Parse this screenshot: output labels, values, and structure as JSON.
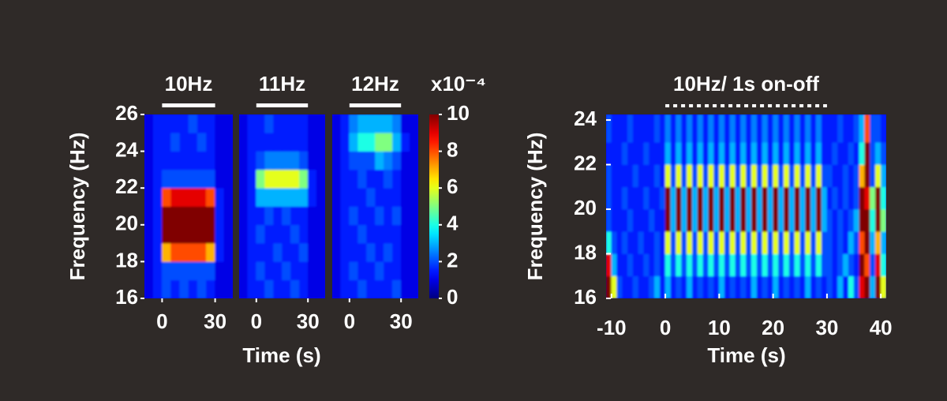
{
  "chart_data": [
    {
      "type": "heatmap",
      "title": "10Hz",
      "ylabel": "Frequency (Hz)",
      "colormap": "jet",
      "clim": [
        0,
        10
      ],
      "xlim": [
        -10,
        40
      ],
      "xticks": [
        0,
        30
      ],
      "ylim": [
        16,
        26
      ],
      "yticks": [
        16,
        18,
        20,
        22,
        24,
        26
      ],
      "stim": [
        0,
        30
      ],
      "stim_style": "solid",
      "x_bins": [
        -10,
        -5,
        0,
        5,
        10,
        15,
        20,
        25,
        30,
        35,
        40
      ],
      "y_bins": [
        16,
        17,
        18,
        19,
        20,
        21,
        22,
        23,
        24,
        25,
        26
      ],
      "z": [
        [
          1,
          1.5,
          2,
          1.5,
          2,
          1.5,
          2,
          1.5,
          1,
          1
        ],
        [
          1,
          1.5,
          2,
          2,
          2,
          2,
          2,
          2,
          1,
          1
        ],
        [
          1,
          1.5,
          7,
          8,
          8,
          8,
          8,
          7,
          1.5,
          1
        ],
        [
          1,
          1.5,
          10,
          10,
          10,
          10,
          10,
          10,
          1.5,
          1
        ],
        [
          1,
          1.5,
          10,
          10,
          10,
          10,
          10,
          10,
          1.5,
          1
        ],
        [
          1,
          1.5,
          8,
          9,
          9,
          9,
          9,
          8,
          1.5,
          1
        ],
        [
          1,
          1.5,
          2,
          2,
          2,
          2,
          2,
          2,
          1,
          1
        ],
        [
          1,
          1.5,
          1.5,
          1.5,
          1.5,
          1.5,
          1.5,
          1.5,
          1,
          1
        ],
        [
          1,
          1.5,
          1.5,
          2,
          1.5,
          1.5,
          2,
          1.5,
          1,
          1
        ],
        [
          1,
          1.5,
          1.5,
          1.5,
          1.5,
          2,
          1.5,
          1.5,
          1,
          1
        ]
      ]
    },
    {
      "type": "heatmap",
      "title": "11Hz",
      "xlabel": "Time (s)",
      "colormap": "jet",
      "clim": [
        0,
        10
      ],
      "xlim": [
        -10,
        40
      ],
      "xticks": [
        0,
        30
      ],
      "ylim": [
        16,
        26
      ],
      "stim": [
        0,
        30
      ],
      "stim_style": "solid",
      "x_bins": [
        -10,
        -5,
        0,
        5,
        10,
        15,
        20,
        25,
        30,
        35,
        40
      ],
      "y_bins": [
        16,
        17,
        18,
        19,
        20,
        21,
        22,
        23,
        24,
        25,
        26
      ],
      "z": [
        [
          1,
          1.5,
          1.5,
          2,
          1.5,
          1.5,
          2,
          1.5,
          1,
          1
        ],
        [
          1,
          1.5,
          2,
          1.5,
          1.5,
          2,
          1.5,
          1.5,
          1,
          1
        ],
        [
          1,
          1.5,
          1.5,
          1.5,
          2,
          1.5,
          1.5,
          2,
          1,
          1
        ],
        [
          1,
          1.5,
          2,
          1.5,
          1.5,
          1.5,
          2,
          1.5,
          1,
          1
        ],
        [
          1,
          1.5,
          1.5,
          2,
          1.5,
          2,
          1.5,
          1.5,
          1,
          1
        ],
        [
          1,
          1.5,
          3,
          3,
          3,
          3,
          3,
          3,
          1.5,
          1
        ],
        [
          1,
          1.5,
          5,
          6,
          6,
          6,
          6,
          5,
          1.5,
          1
        ],
        [
          1,
          1.5,
          2,
          2.5,
          2.5,
          2.5,
          2.5,
          2,
          1,
          1
        ],
        [
          1,
          1.5,
          1.5,
          1.5,
          1.5,
          1.5,
          1.5,
          1.5,
          1,
          1
        ],
        [
          1,
          1.5,
          1.5,
          2,
          1.5,
          1.5,
          1.5,
          1.5,
          1,
          1
        ]
      ]
    },
    {
      "type": "heatmap",
      "title": "12Hz",
      "colormap": "jet",
      "clim": [
        0,
        10
      ],
      "clabel": "x10⁻⁴",
      "cticks": [
        0,
        2,
        4,
        6,
        8,
        10
      ],
      "xlim": [
        -10,
        40
      ],
      "xticks": [
        0,
        30
      ],
      "ylim": [
        16,
        26
      ],
      "stim": [
        0,
        30
      ],
      "stim_style": "solid",
      "x_bins": [
        -10,
        -5,
        0,
        5,
        10,
        15,
        20,
        25,
        30,
        35,
        40
      ],
      "y_bins": [
        16,
        17,
        18,
        19,
        20,
        21,
        22,
        23,
        24,
        25,
        26
      ],
      "z": [
        [
          1,
          1.5,
          1.5,
          2,
          1.5,
          1.5,
          1.5,
          2,
          1,
          1
        ],
        [
          1,
          1.5,
          2,
          1.5,
          1.5,
          2,
          1.5,
          1.5,
          1,
          1
        ],
        [
          1,
          1.5,
          1.5,
          1.5,
          2,
          1.5,
          2,
          1.5,
          1,
          1
        ],
        [
          1,
          1.5,
          1.5,
          2,
          1.5,
          1.5,
          1.5,
          1.5,
          1,
          1
        ],
        [
          1,
          1.5,
          2,
          1.5,
          1.5,
          2,
          1.5,
          2,
          1,
          1
        ],
        [
          1,
          1.5,
          1.5,
          1.5,
          2,
          1.5,
          1.5,
          1.5,
          1,
          1
        ],
        [
          1,
          1.5,
          1.5,
          2,
          1.5,
          1.5,
          2,
          1.5,
          1,
          1
        ],
        [
          1,
          1.5,
          2,
          2,
          2,
          3,
          2.5,
          2,
          1,
          1
        ],
        [
          1,
          1.5,
          3,
          4,
          4,
          5,
          5,
          3,
          1.5,
          1
        ],
        [
          1,
          1.5,
          2.5,
          3,
          3,
          3,
          3,
          2.5,
          1,
          1
        ]
      ]
    },
    {
      "type": "heatmap",
      "title": "10Hz/ 1s on-off",
      "xlabel": "Time (s)",
      "ylabel": "Frequency (Hz)",
      "colormap": "jet",
      "clim": [
        0,
        10
      ],
      "xlim": [
        -11,
        41
      ],
      "xticks": [
        -10,
        0,
        10,
        20,
        30,
        40
      ],
      "ylim": [
        16,
        24.25
      ],
      "yticks": [
        16,
        18,
        20,
        22,
        24
      ],
      "stim": [
        0,
        30
      ],
      "stim_style": "dashed",
      "x_bins": [
        -11,
        -10,
        -9,
        -8,
        -7,
        -6,
        -5,
        -4,
        -3,
        -2,
        -1,
        0,
        1,
        2,
        3,
        4,
        5,
        6,
        7,
        8,
        9,
        10,
        11,
        12,
        13,
        14,
        15,
        16,
        17,
        18,
        19,
        20,
        21,
        22,
        23,
        24,
        25,
        26,
        27,
        28,
        29,
        30,
        31,
        32,
        33,
        34,
        35,
        36,
        37,
        38,
        39,
        40,
        41
      ],
      "y_bins": [
        16,
        17,
        18,
        19,
        20,
        21,
        22,
        23,
        24.25
      ],
      "z": [
        [
          10,
          6,
          2,
          1.5,
          1.5,
          2,
          1.5,
          1.5,
          2,
          3,
          1.5,
          3,
          1.5,
          2,
          1.5,
          3,
          1.5,
          2,
          1.5,
          2,
          1.5,
          3,
          1.5,
          2,
          1.5,
          2,
          1.5,
          3,
          1.5,
          2,
          1.5,
          3,
          1.5,
          2,
          1.5,
          2,
          1.5,
          3,
          1.5,
          2,
          1.5,
          2,
          1.5,
          3,
          1.5,
          4,
          2,
          9,
          10,
          3,
          10,
          6
        ],
        [
          9,
          3,
          1.5,
          1.5,
          2,
          1.5,
          1.5,
          2,
          1.5,
          2,
          1.5,
          4,
          2,
          4,
          2,
          4,
          2,
          4,
          2,
          4,
          2,
          4,
          2,
          4,
          2,
          4,
          2,
          4,
          2,
          4,
          2,
          4,
          2,
          4,
          2,
          4,
          2,
          4,
          2,
          4,
          2,
          2,
          1.5,
          2,
          3,
          2,
          1.5,
          10,
          8,
          2,
          9,
          4
        ],
        [
          4,
          2,
          1.5,
          2,
          1.5,
          1.5,
          2,
          1.5,
          1.5,
          2,
          1.5,
          6,
          2,
          6,
          2,
          6,
          2,
          6,
          2,
          6,
          2,
          6,
          2,
          6,
          2,
          6,
          2,
          6,
          2,
          6,
          2,
          6,
          2,
          6,
          2,
          6,
          2,
          6,
          2,
          6,
          2,
          2,
          1.5,
          2,
          1.5,
          3,
          2,
          8,
          10,
          3,
          7,
          3
        ],
        [
          2,
          1.5,
          1.5,
          1.5,
          2,
          1.5,
          1.5,
          1.5,
          2,
          1.5,
          1.5,
          10,
          3,
          10,
          3,
          10,
          3,
          10,
          3,
          10,
          3,
          10,
          3,
          10,
          3,
          10,
          3,
          10,
          3,
          10,
          3,
          10,
          3,
          10,
          3,
          10,
          3,
          10,
          3,
          10,
          3,
          2,
          1.5,
          2,
          1.5,
          2,
          3,
          10,
          10,
          4,
          10,
          5
        ],
        [
          2,
          1.5,
          1.5,
          2,
          1.5,
          1.5,
          1.5,
          2,
          1.5,
          1.5,
          2,
          10,
          3,
          10,
          3,
          10,
          3,
          10,
          3,
          10,
          3,
          10,
          3,
          10,
          3,
          10,
          3,
          10,
          3,
          10,
          3,
          10,
          3,
          10,
          3,
          10,
          3,
          10,
          3,
          10,
          3,
          1.5,
          2,
          1.5,
          2,
          1.5,
          2,
          10,
          9,
          5,
          10,
          4
        ],
        [
          2,
          1.5,
          1.5,
          1.5,
          1.5,
          2,
          1.5,
          1.5,
          1.5,
          2,
          1.5,
          6,
          2,
          6,
          2,
          6,
          2,
          6,
          2,
          6,
          2,
          6,
          2,
          6,
          2,
          6,
          2,
          6,
          2,
          6,
          2,
          6,
          2,
          6,
          2,
          6,
          2,
          6,
          2,
          6,
          2,
          2,
          1.5,
          1.5,
          2,
          1.5,
          2,
          7,
          10,
          2,
          6,
          3
        ],
        [
          1.5,
          1.5,
          1.5,
          2,
          1.5,
          1.5,
          1.5,
          2,
          1.5,
          1.5,
          1.5,
          3,
          1.5,
          3,
          1.5,
          3,
          1.5,
          3,
          1.5,
          3,
          1.5,
          3,
          1.5,
          3,
          1.5,
          3,
          1.5,
          3,
          1.5,
          3,
          1.5,
          3,
          1.5,
          3,
          1.5,
          3,
          1.5,
          3,
          1.5,
          3,
          1.5,
          1.5,
          2,
          1.5,
          1.5,
          2,
          1.5,
          4,
          10,
          2,
          3,
          2
        ],
        [
          2,
          1.5,
          1.5,
          1.5,
          2,
          1.5,
          1.5,
          1.5,
          1.5,
          2,
          1.5,
          2.5,
          1.5,
          2.5,
          1.5,
          2.5,
          1.5,
          2.5,
          1.5,
          2.5,
          1.5,
          2.5,
          1.5,
          2.5,
          1.5,
          2.5,
          1.5,
          2.5,
          1.5,
          2.5,
          1.5,
          2.5,
          1.5,
          2.5,
          1.5,
          2.5,
          1.5,
          2.5,
          1.5,
          2.5,
          1.5,
          1.5,
          1.5,
          2,
          1.5,
          1.5,
          2,
          3,
          8,
          2,
          2,
          1.5
        ]
      ]
    }
  ]
}
